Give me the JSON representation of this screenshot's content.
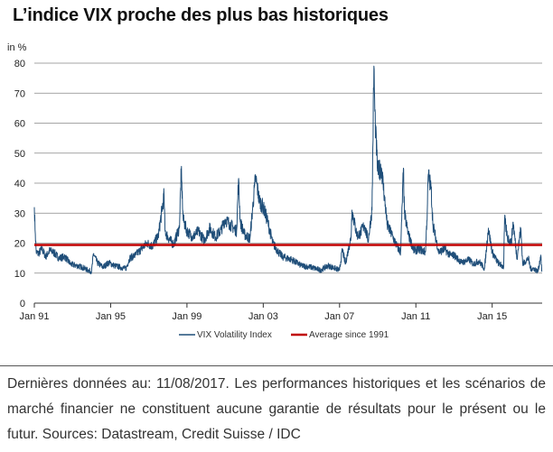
{
  "title": "L’indice VIX proche des plus bas historiques",
  "footnote": "Dernières données au: 11/08/2017. Les performances historiques et les scénarios de marché financier ne constituent aucune garantie de résultats pour le présent ou le futur. Sources: Datastream, Credit Suisse / IDC",
  "colors": {
    "vix": "#1f4e79",
    "average": "#c00000",
    "grid": "#888888"
  },
  "chart_data": {
    "type": "line",
    "title": "L’indice VIX proche des plus bas historiques",
    "ylabel": "in %",
    "ylim": [
      0,
      80
    ],
    "yticks": [
      0,
      10,
      20,
      30,
      40,
      50,
      60,
      70,
      80
    ],
    "xlim": [
      1991.0,
      2017.62
    ],
    "xticks": [
      {
        "x": 1991,
        "label": "Jan 91"
      },
      {
        "x": 1995,
        "label": "Jan 95"
      },
      {
        "x": 1999,
        "label": "Jan 99"
      },
      {
        "x": 2003,
        "label": "Jan 03"
      },
      {
        "x": 2007,
        "label": "Jan 07"
      },
      {
        "x": 2011,
        "label": "Jan 11"
      },
      {
        "x": 2015,
        "label": "Jan 15"
      }
    ],
    "grid": "horizontal",
    "legend_position": "bottom",
    "series": [
      {
        "name": "VIX Volatility Index",
        "x": [
          1991.0,
          1991.05,
          1991.1,
          1991.2,
          1991.4,
          1991.6,
          1991.8,
          1992.0,
          1992.3,
          1992.6,
          1992.9,
          1993.2,
          1993.5,
          1993.8,
          1994.0,
          1994.1,
          1994.3,
          1994.6,
          1994.9,
          1995.2,
          1995.5,
          1995.8,
          1996.0,
          1996.3,
          1996.6,
          1996.9,
          1997.2,
          1997.5,
          1997.8,
          1997.85,
          1998.0,
          1998.3,
          1998.6,
          1998.7,
          1998.8,
          1999.0,
          1999.3,
          1999.6,
          1999.9,
          2000.2,
          2000.5,
          2000.8,
          2001.0,
          2001.3,
          2001.6,
          2001.7,
          2001.8,
          2002.0,
          2002.3,
          2002.55,
          2002.6,
          2002.8,
          2003.0,
          2003.2,
          2003.5,
          2003.8,
          2004.0,
          2004.5,
          2005.0,
          2005.5,
          2006.0,
          2006.4,
          2006.8,
          2007.0,
          2007.15,
          2007.3,
          2007.6,
          2007.65,
          2007.9,
          2008.0,
          2008.3,
          2008.5,
          2008.7,
          2008.8,
          2008.85,
          2008.9,
          2009.0,
          2009.2,
          2009.5,
          2009.8,
          2010.0,
          2010.2,
          2010.35,
          2010.4,
          2010.6,
          2010.9,
          2011.2,
          2011.5,
          2011.6,
          2011.65,
          2011.8,
          2011.9,
          2012.2,
          2012.5,
          2012.8,
          2013.0,
          2013.4,
          2013.8,
          2014.0,
          2014.3,
          2014.6,
          2014.8,
          2015.0,
          2015.3,
          2015.6,
          2015.65,
          2015.8,
          2016.0,
          2016.1,
          2016.3,
          2016.5,
          2016.6,
          2016.9,
          2017.0,
          2017.2,
          2017.4,
          2017.55,
          2017.6
        ],
        "values": [
          32.0,
          23.0,
          17.0,
          16.5,
          18.0,
          15.5,
          17.5,
          17.0,
          15.0,
          15.5,
          13.0,
          12.5,
          12.0,
          11.0,
          10.5,
          16.5,
          13.5,
          12.0,
          13.5,
          12.5,
          12.0,
          11.5,
          15.0,
          16.0,
          18.0,
          20.0,
          19.0,
          22.5,
          36.0,
          24.0,
          22.0,
          19.5,
          25.0,
          44.0,
          28.0,
          24.0,
          22.0,
          24.0,
          21.0,
          25.0,
          22.0,
          24.5,
          28.0,
          26.0,
          24.0,
          41.0,
          27.0,
          23.0,
          21.5,
          39.0,
          42.0,
          34.0,
          32.0,
          28.0,
          20.0,
          17.0,
          15.5,
          14.5,
          12.5,
          12.0,
          11.0,
          12.5,
          11.5,
          11.0,
          18.0,
          13.0,
          22.0,
          31.0,
          23.0,
          22.5,
          26.0,
          21.0,
          31.0,
          79.0,
          64.0,
          56.0,
          44.0,
          45.0,
          26.0,
          22.0,
          19.0,
          17.0,
          45.0,
          30.0,
          23.0,
          17.5,
          18.0,
          17.0,
          31.0,
          43.0,
          38.0,
          26.0,
          17.0,
          18.0,
          16.0,
          16.0,
          13.5,
          14.5,
          13.0,
          14.0,
          11.5,
          25.0,
          17.0,
          13.5,
          12.0,
          28.0,
          22.0,
          20.0,
          27.0,
          15.0,
          25.0,
          13.0,
          15.0,
          11.5,
          11.5,
          10.5,
          16.0,
          10.5
        ]
      },
      {
        "name": "Average since 1991",
        "x": [
          1991.0,
          2017.62
        ],
        "values": [
          19.4,
          19.4
        ]
      }
    ]
  }
}
